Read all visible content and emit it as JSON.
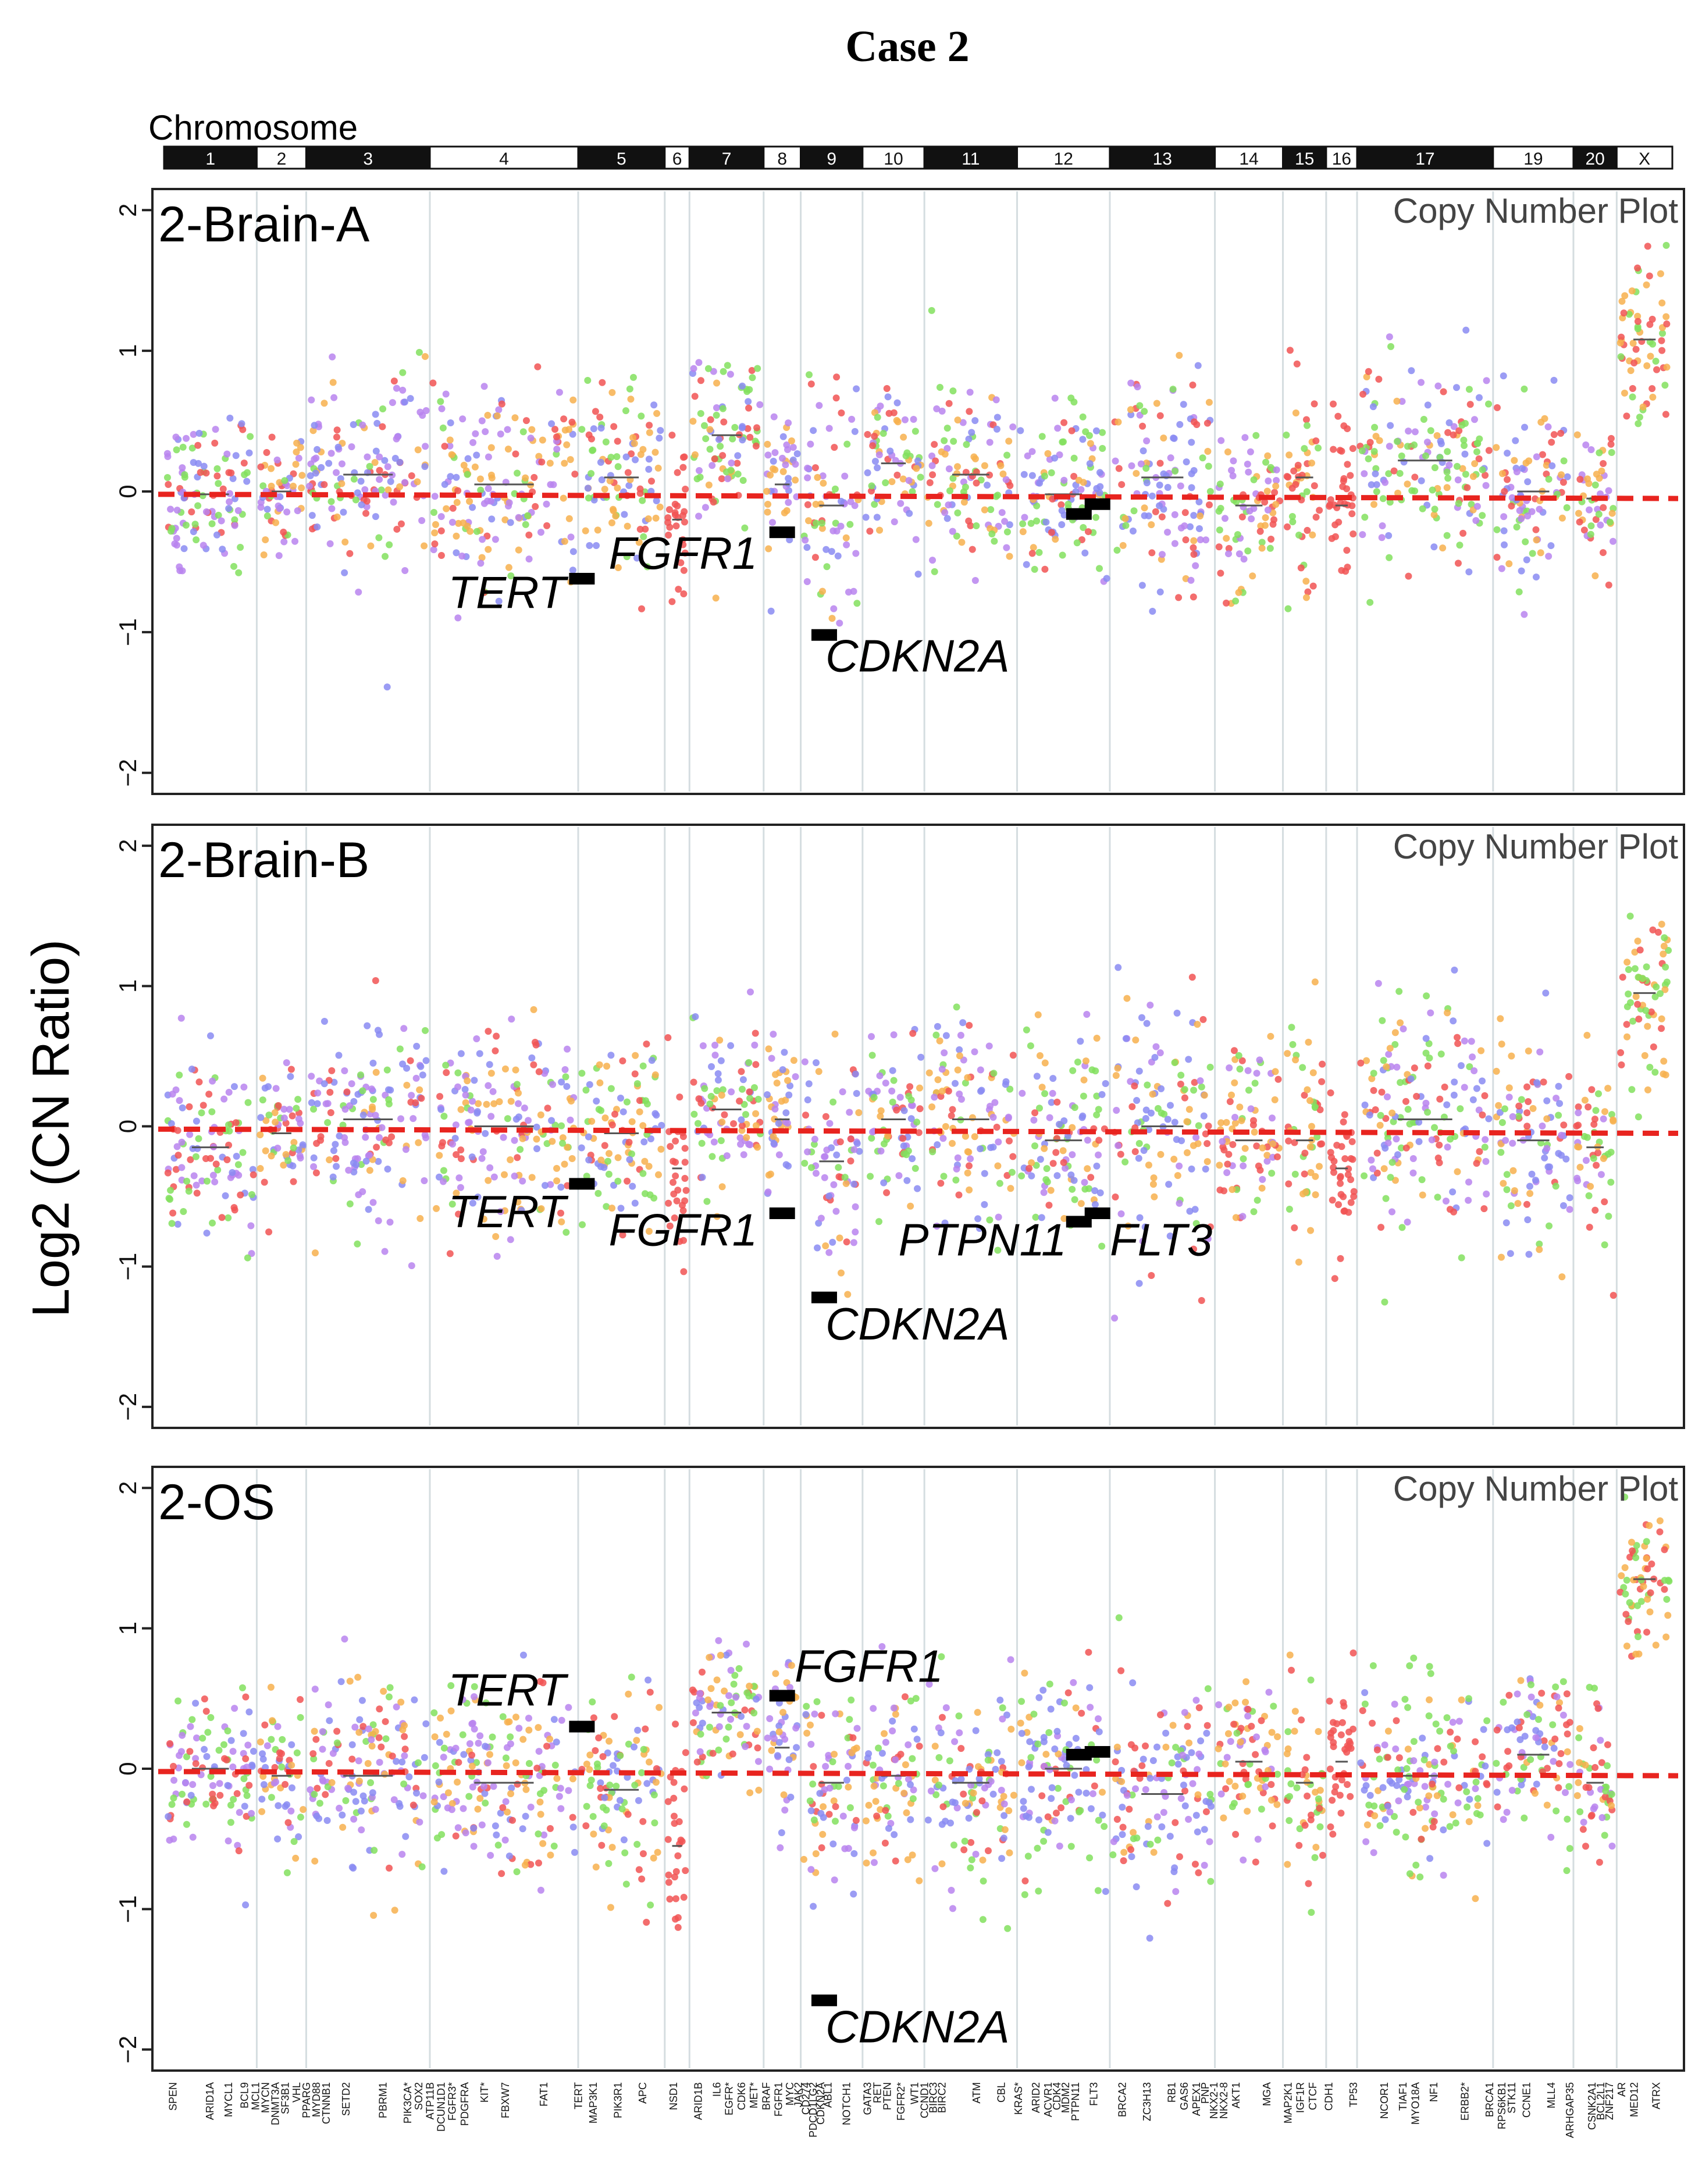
{
  "figure_title": "Case 2",
  "chromosome_label": "Chromosome",
  "y_axis_label": "Log2 (CN Ratio)",
  "plot_label": "Copy Number Plot",
  "chromosomes": [
    {
      "name": "1",
      "start": 0,
      "end": 7.5
    },
    {
      "name": "2",
      "start": 7.5,
      "end": 11.5
    },
    {
      "name": "3",
      "start": 11.5,
      "end": 21.5
    },
    {
      "name": "4",
      "start": 21.5,
      "end": 33.5
    },
    {
      "name": "5",
      "start": 33.5,
      "end": 40.5
    },
    {
      "name": "6",
      "start": 40.5,
      "end": 42.5
    },
    {
      "name": "7",
      "start": 42.5,
      "end": 48.5
    },
    {
      "name": "8",
      "start": 48.5,
      "end": 51.5
    },
    {
      "name": "9",
      "start": 51.5,
      "end": 56.5
    },
    {
      "name": "10",
      "start": 56.5,
      "end": 61.5
    },
    {
      "name": "11",
      "start": 61.5,
      "end": 69.0
    },
    {
      "name": "12",
      "start": 69.0,
      "end": 76.5
    },
    {
      "name": "13",
      "start": 76.5,
      "end": 85.0
    },
    {
      "name": "14",
      "start": 85.0,
      "end": 90.5
    },
    {
      "name": "15",
      "start": 90.5,
      "end": 94.0
    },
    {
      "name": "16",
      "start": 94.0,
      "end": 96.5
    },
    {
      "name": "17",
      "start": 96.5,
      "end": 107.5
    },
    {
      "name": "19",
      "start": 107.5,
      "end": 114.0
    },
    {
      "name": "20",
      "start": 114.0,
      "end": 117.5
    },
    {
      "name": "X",
      "start": 117.5,
      "end": 122.0
    }
  ],
  "genes": [
    {
      "name": "SPEN",
      "x": 1.0
    },
    {
      "name": "ARID1A",
      "x": 4.0
    },
    {
      "name": "MYCL1",
      "x": 5.5
    },
    {
      "name": "BCL9",
      "x": 6.8
    },
    {
      "name": "MCL1",
      "x": 7.7
    },
    {
      "name": "MYCN",
      "x": 8.5
    },
    {
      "name": "DNMT3A",
      "x": 9.3
    },
    {
      "name": "SF3B1",
      "x": 10.1
    },
    {
      "name": "VHL",
      "x": 11.0
    },
    {
      "name": "PPARG",
      "x": 11.8
    },
    {
      "name": "MYD88",
      "x": 12.6
    },
    {
      "name": "CTNNB1",
      "x": 13.4
    },
    {
      "name": "SETD2",
      "x": 15.0
    },
    {
      "name": "PBRM1",
      "x": 18.0
    },
    {
      "name": "PIK3CA*",
      "x": 20.0
    },
    {
      "name": "SOX2",
      "x": 20.9
    },
    {
      "name": "ATP11B",
      "x": 21.8
    },
    {
      "name": "DCUN1D1",
      "x": 22.7
    },
    {
      "name": "FGFR3*",
      "x": 23.6
    },
    {
      "name": "PDGFRA",
      "x": 24.6
    },
    {
      "name": "KIT*",
      "x": 26.2
    },
    {
      "name": "FBXW7",
      "x": 27.9
    },
    {
      "name": "FAT1",
      "x": 31.0
    },
    {
      "name": "TERT",
      "x": 33.8
    },
    {
      "name": "MAP3K1",
      "x": 35.0
    },
    {
      "name": "PIK3R1",
      "x": 37.0
    },
    {
      "name": "APC",
      "x": 39.0
    },
    {
      "name": "NSD1",
      "x": 41.5
    },
    {
      "name": "ARID1B",
      "x": 43.5
    },
    {
      "name": "IL6",
      "x": 45.0
    },
    {
      "name": "EGFR*",
      "x": 46.0
    },
    {
      "name": "CDK6",
      "x": 47.0
    },
    {
      "name": "MET*",
      "x": 48.0
    },
    {
      "name": "BRAF",
      "x": 49.0
    },
    {
      "name": "FGFR1",
      "x": 50.0
    },
    {
      "name": "MYC",
      "x": 50.9
    },
    {
      "name": "JAK2",
      "x": 51.6
    },
    {
      "name": "CD274",
      "x": 52.2
    },
    {
      "name": "PDCD1LG2",
      "x": 52.8
    },
    {
      "name": "CDKN2A",
      "x": 53.4
    },
    {
      "name": "ABL1",
      "x": 54.0
    },
    {
      "name": "NOTCH1",
      "x": 55.5
    },
    {
      "name": "GATA3",
      "x": 57.2
    },
    {
      "name": "RET",
      "x": 58.0
    },
    {
      "name": "PTEN",
      "x": 58.8
    },
    {
      "name": "FGFR2*",
      "x": 59.9
    },
    {
      "name": "WT1",
      "x": 61.0
    },
    {
      "name": "CCND1",
      "x": 61.8
    },
    {
      "name": "BIRC3",
      "x": 62.5
    },
    {
      "name": "BIRC2",
      "x": 63.2
    },
    {
      "name": "ATM",
      "x": 66.0
    },
    {
      "name": "CBL",
      "x": 68.0
    },
    {
      "name": "KRAS*",
      "x": 69.4
    },
    {
      "name": "ARID2",
      "x": 70.8
    },
    {
      "name": "ACVR1",
      "x": 71.8
    },
    {
      "name": "CDK4",
      "x": 72.5
    },
    {
      "name": "MDM2",
      "x": 73.2
    },
    {
      "name": "PTPN11",
      "x": 74.0
    },
    {
      "name": "FLT3",
      "x": 75.5
    },
    {
      "name": "BRCA2",
      "x": 77.8
    },
    {
      "name": "ZC3H13",
      "x": 79.8
    },
    {
      "name": "RB1",
      "x": 81.8
    },
    {
      "name": "GAS6",
      "x": 82.8
    },
    {
      "name": "APEX1",
      "x": 83.8
    },
    {
      "name": "PNP",
      "x": 84.5
    },
    {
      "name": "NKX2-1",
      "x": 85.2
    },
    {
      "name": "NKX2-8",
      "x": 86.0
    },
    {
      "name": "AKT1",
      "x": 87.0
    },
    {
      "name": "MGA",
      "x": 89.5
    },
    {
      "name": "MAP2K1",
      "x": 91.2
    },
    {
      "name": "IGF1R",
      "x": 92.2
    },
    {
      "name": "CTCF",
      "x": 93.2
    },
    {
      "name": "CDH1",
      "x": 94.5
    },
    {
      "name": "TP53",
      "x": 96.5
    },
    {
      "name": "NCOR1",
      "x": 99.0
    },
    {
      "name": "TIAF1",
      "x": 100.5
    },
    {
      "name": "MYO18A",
      "x": 101.5
    },
    {
      "name": "NF1",
      "x": 103.0
    },
    {
      "name": "ERBB2*",
      "x": 105.5
    },
    {
      "name": "BRCA1",
      "x": 107.5
    },
    {
      "name": "RPS6KB1",
      "x": 108.5
    },
    {
      "name": "STK11",
      "x": 109.3
    },
    {
      "name": "CCNE1",
      "x": 110.5
    },
    {
      "name": "MLL4",
      "x": 112.5
    },
    {
      "name": "ARHGAP35",
      "x": 114.0
    },
    {
      "name": "CSNK2A1",
      "x": 115.8
    },
    {
      "name": "BCL2L1",
      "x": 116.5
    },
    {
      "name": "ZNF217",
      "x": 117.2
    },
    {
      "name": "AR",
      "x": 118.2
    },
    {
      "name": "MED12",
      "x": 119.2
    },
    {
      "name": "ATRX",
      "x": 121.0
    }
  ],
  "chart_data": [
    {
      "type": "scatter",
      "panel": "2-Brain-A",
      "title": "Copy Number Plot",
      "ylabel": "Log2 (CN Ratio)",
      "ylim": [
        -2.15,
        2.15
      ],
      "yticks": [
        -2,
        -1,
        0,
        1,
        2
      ],
      "baseline": -0.02,
      "segments": [
        {
          "chrom": "1",
          "mean": -0.02,
          "spread": 0.32
        },
        {
          "chrom": "2",
          "mean": 0.0,
          "spread": 0.26
        },
        {
          "chrom": "3",
          "mean": 0.12,
          "spread": 0.36
        },
        {
          "chrom": "4",
          "mean": 0.05,
          "spread": 0.33
        },
        {
          "chrom": "5",
          "mean": 0.1,
          "spread": 0.34
        },
        {
          "chrom": "6",
          "mean": -0.2,
          "spread": 0.3
        },
        {
          "chrom": "7",
          "mean": 0.4,
          "spread": 0.3
        },
        {
          "chrom": "8",
          "mean": 0.05,
          "spread": 0.3
        },
        {
          "chrom": "9",
          "mean": -0.1,
          "spread": 0.38
        },
        {
          "chrom": "10",
          "mean": 0.2,
          "spread": 0.3
        },
        {
          "chrom": "11",
          "mean": 0.12,
          "spread": 0.34
        },
        {
          "chrom": "12",
          "mean": -0.02,
          "spread": 0.33
        },
        {
          "chrom": "13",
          "mean": 0.1,
          "spread": 0.4
        },
        {
          "chrom": "14",
          "mean": -0.1,
          "spread": 0.3
        },
        {
          "chrom": "15",
          "mean": 0.1,
          "spread": 0.35
        },
        {
          "chrom": "16",
          "mean": -0.1,
          "spread": 0.3
        },
        {
          "chrom": "17",
          "mean": 0.22,
          "spread": 0.35
        },
        {
          "chrom": "19",
          "mean": 0.0,
          "spread": 0.33
        },
        {
          "chrom": "20",
          "mean": -0.05,
          "spread": 0.25
        },
        {
          "chrom": "X",
          "mean": 1.08,
          "spread": 0.28
        }
      ],
      "highlights": [
        {
          "gene": "TERT",
          "x": 33.8,
          "value": -0.62,
          "label_x": 32.5,
          "label_y": -0.83,
          "anchor": "end"
        },
        {
          "gene": "FGFR1",
          "x": 50.0,
          "value": -0.29,
          "label_x": 48.0,
          "label_y": -0.55,
          "anchor": "end"
        },
        {
          "gene": "CDKN2A",
          "x": 53.4,
          "value": -1.02,
          "label_x": 53.5,
          "label_y": -1.28,
          "anchor": "start"
        },
        {
          "gene": "PTPN11",
          "x": 74.0,
          "value": -0.16,
          "label_x": 0,
          "label_y": 0,
          "anchor": "none"
        },
        {
          "gene": "FLT3",
          "x": 75.5,
          "value": -0.09,
          "label_x": 0,
          "label_y": 0,
          "anchor": "none"
        }
      ]
    },
    {
      "type": "scatter",
      "panel": "2-Brain-B",
      "title": "Copy Number Plot",
      "ylabel": "Log2 (CN Ratio)",
      "ylim": [
        -2.15,
        2.15
      ],
      "yticks": [
        -2,
        -1,
        0,
        1,
        2
      ],
      "baseline": -0.02,
      "segments": [
        {
          "chrom": "1",
          "mean": -0.15,
          "spread": 0.32
        },
        {
          "chrom": "2",
          "mean": -0.05,
          "spread": 0.3
        },
        {
          "chrom": "3",
          "mean": 0.05,
          "spread": 0.36
        },
        {
          "chrom": "4",
          "mean": 0.0,
          "spread": 0.35
        },
        {
          "chrom": "5",
          "mean": -0.05,
          "spread": 0.35
        },
        {
          "chrom": "6",
          "mean": -0.3,
          "spread": 0.32
        },
        {
          "chrom": "7",
          "mean": 0.12,
          "spread": 0.3
        },
        {
          "chrom": "8",
          "mean": 0.05,
          "spread": 0.3
        },
        {
          "chrom": "9",
          "mean": -0.25,
          "spread": 0.38
        },
        {
          "chrom": "10",
          "mean": 0.05,
          "spread": 0.3
        },
        {
          "chrom": "11",
          "mean": 0.05,
          "spread": 0.38
        },
        {
          "chrom": "12",
          "mean": -0.1,
          "spread": 0.35
        },
        {
          "chrom": "13",
          "mean": 0.0,
          "spread": 0.4
        },
        {
          "chrom": "14",
          "mean": -0.1,
          "spread": 0.3
        },
        {
          "chrom": "15",
          "mean": -0.1,
          "spread": 0.38
        },
        {
          "chrom": "16",
          "mean": -0.3,
          "spread": 0.3
        },
        {
          "chrom": "17",
          "mean": 0.05,
          "spread": 0.38
        },
        {
          "chrom": "19",
          "mean": -0.1,
          "spread": 0.35
        },
        {
          "chrom": "20",
          "mean": -0.15,
          "spread": 0.3
        },
        {
          "chrom": "X",
          "mean": 0.95,
          "spread": 0.28
        }
      ],
      "highlights": [
        {
          "gene": "TERT",
          "x": 33.8,
          "value": -0.41,
          "label_x": 32.5,
          "label_y": -0.72,
          "anchor": "end"
        },
        {
          "gene": "FGFR1",
          "x": 50.0,
          "value": -0.62,
          "label_x": 48.0,
          "label_y": -0.85,
          "anchor": "end"
        },
        {
          "gene": "CDKN2A",
          "x": 53.4,
          "value": -1.22,
          "label_x": 53.5,
          "label_y": -1.52,
          "anchor": "start"
        },
        {
          "gene": "PTPN11",
          "x": 74.0,
          "value": -0.68,
          "label_x": 73.0,
          "label_y": -0.92,
          "anchor": "end"
        },
        {
          "gene": "FLT3",
          "x": 75.5,
          "value": -0.62,
          "label_x": 76.5,
          "label_y": -0.92,
          "anchor": "start"
        }
      ]
    },
    {
      "type": "scatter",
      "panel": "2-OS",
      "title": "Copy Number Plot",
      "ylabel": "Log2 (CN Ratio)",
      "ylim": [
        -2.15,
        2.15
      ],
      "yticks": [
        -2,
        -1,
        0,
        1,
        2
      ],
      "baseline": -0.02,
      "segments": [
        {
          "chrom": "1",
          "mean": 0.0,
          "spread": 0.3
        },
        {
          "chrom": "2",
          "mean": -0.05,
          "spread": 0.26
        },
        {
          "chrom": "3",
          "mean": -0.05,
          "spread": 0.36
        },
        {
          "chrom": "4",
          "mean": -0.1,
          "spread": 0.33
        },
        {
          "chrom": "5",
          "mean": -0.15,
          "spread": 0.33
        },
        {
          "chrom": "6",
          "mean": -0.55,
          "spread": 0.32
        },
        {
          "chrom": "7",
          "mean": 0.4,
          "spread": 0.28
        },
        {
          "chrom": "8",
          "mean": 0.15,
          "spread": 0.32
        },
        {
          "chrom": "9",
          "mean": -0.1,
          "spread": 0.35
        },
        {
          "chrom": "10",
          "mean": -0.05,
          "spread": 0.3
        },
        {
          "chrom": "11",
          "mean": -0.1,
          "spread": 0.35
        },
        {
          "chrom": "12",
          "mean": 0.0,
          "spread": 0.32
        },
        {
          "chrom": "13",
          "mean": -0.18,
          "spread": 0.38
        },
        {
          "chrom": "14",
          "mean": 0.05,
          "spread": 0.3
        },
        {
          "chrom": "15",
          "mean": -0.1,
          "spread": 0.33
        },
        {
          "chrom": "16",
          "mean": 0.05,
          "spread": 0.3
        },
        {
          "chrom": "17",
          "mean": -0.05,
          "spread": 0.36
        },
        {
          "chrom": "19",
          "mean": 0.1,
          "spread": 0.35
        },
        {
          "chrom": "20",
          "mean": -0.1,
          "spread": 0.3
        },
        {
          "chrom": "X",
          "mean": 1.35,
          "spread": 0.28
        }
      ],
      "highlights": [
        {
          "gene": "TERT",
          "x": 33.8,
          "value": 0.3,
          "label_x": 32.5,
          "label_y": 0.45,
          "anchor": "end"
        },
        {
          "gene": "FGFR1",
          "x": 50.0,
          "value": 0.52,
          "label_x": 51.0,
          "label_y": 0.62,
          "anchor": "start"
        },
        {
          "gene": "CDKN2A",
          "x": 53.4,
          "value": -1.65,
          "label_x": 53.5,
          "label_y": -1.95,
          "anchor": "start"
        },
        {
          "gene": "PTPN11",
          "x": 74.0,
          "value": 0.1,
          "label_x": 0,
          "label_y": 0,
          "anchor": "none"
        },
        {
          "gene": "FLT3",
          "x": 75.5,
          "value": 0.12,
          "label_x": 0,
          "label_y": 0,
          "anchor": "none"
        }
      ]
    }
  ]
}
